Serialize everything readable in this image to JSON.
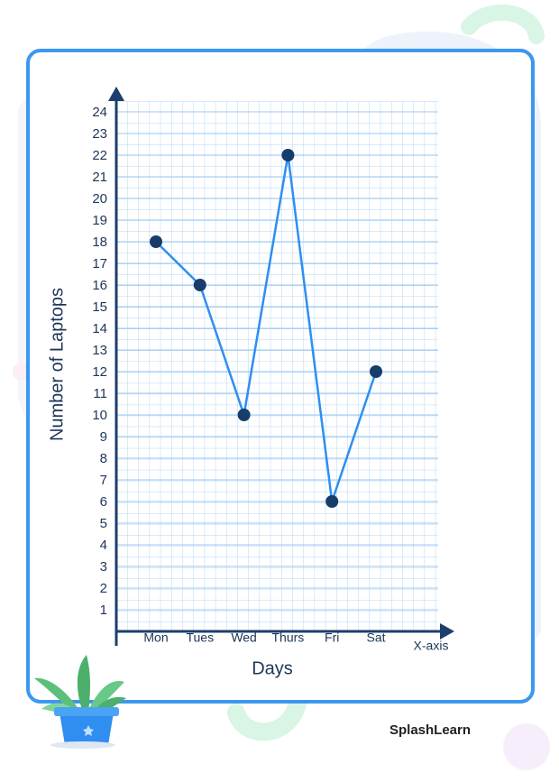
{
  "chart_data": {
    "type": "line",
    "categories": [
      "Mon",
      "Tues",
      "Wed",
      "Thurs",
      "Fri",
      "Sat"
    ],
    "values": [
      18,
      16,
      10,
      22,
      6,
      12
    ],
    "color": "#2f8ef0",
    "marker_color": "#173d6b",
    "ylim": [
      0,
      24
    ],
    "yticks": [
      1,
      2,
      3,
      4,
      5,
      6,
      7,
      8,
      9,
      10,
      11,
      12,
      13,
      14,
      15,
      16,
      17,
      18,
      19,
      20,
      21,
      22,
      23,
      24
    ],
    "grid": true,
    "x_label": "Days",
    "y_label": "Number of Laptops",
    "x_axis_annotation": "X-axis"
  },
  "brand": "SplashLearn"
}
